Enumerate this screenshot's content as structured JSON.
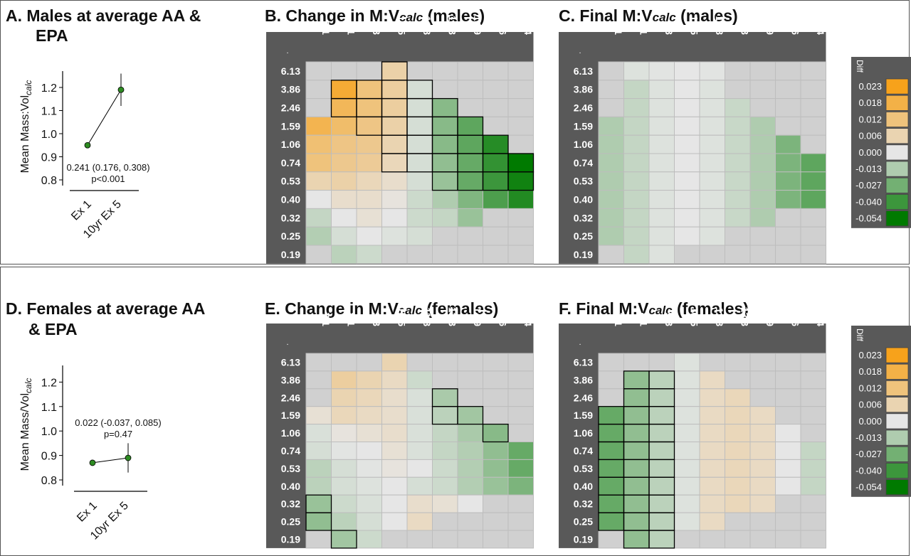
{
  "titles": {
    "A_line1": "A.  Males at average AA &",
    "A_line2": "EPA",
    "B_pre": "B. Change in M:V",
    "B_sub": "calc",
    "B_post": " (males)",
    "C_pre": "C. Final M:V",
    "C_sub": "calc",
    "C_post": " (males)",
    "D_line1": "D. Females at average AA",
    "D_line2": "& EPA",
    "E_pre": "E. Change in M:V",
    "E_sub": "calc",
    "E_post": " (females)",
    "F_pre": "F. Final M:V",
    "F_sub": "calc",
    "F_post": " (females)"
  },
  "grid_corner": ".",
  "legend_title": "Diff",
  "colors": {
    "orange": "#f7a21b",
    "green": "#007a00",
    "neutral": "#e6e6e6",
    "blank": "#d0d0d0",
    "header_bg": "#595959",
    "header_text": "#ffffff",
    "dot": "#2e8b22"
  },
  "chart_data": [
    {
      "id": "A",
      "type": "scatter",
      "ylabel_main": "Mean Mass:Vol",
      "ylabel_sub": "calc",
      "categories": [
        "Ex 1",
        "10yr Ex 5"
      ],
      "values": [
        0.95,
        1.19
      ],
      "error_bars": [
        [
          0.94,
          0.96
        ],
        [
          1.12,
          1.26
        ]
      ],
      "yticks": [
        "0.8",
        "0.9",
        "1.0",
        "1.1",
        "1.2"
      ],
      "ylim": [
        0.8,
        1.25
      ],
      "annotation_line1": "0.241 (0.176, 0.308)",
      "annotation_line2": "p<0.001"
    },
    {
      "id": "D",
      "type": "scatter",
      "ylabel_main": "Mean Mass/Vol",
      "ylabel_sub": "calc",
      "categories": [
        "Ex 1",
        "10yr Ex 5"
      ],
      "values": [
        0.87,
        0.89
      ],
      "error_bars": [
        [
          0.86,
          0.88
        ],
        [
          0.83,
          0.95
        ]
      ],
      "yticks": [
        "0.8",
        "0.9",
        "1.0",
        "1.1",
        "1.2"
      ],
      "ylim": [
        0.8,
        1.25
      ],
      "annotation_line1": "0.022 (-0.037, 0.085)",
      "annotation_line2": "p=0.47"
    },
    {
      "id": "B",
      "type": "heatmap",
      "x": [
        "7.1",
        "8.1",
        "9.3",
        "10.5",
        "11.8",
        "13.3",
        "14.9",
        "16.6",
        "18.4"
      ],
      "y": [
        "6.13",
        "3.86",
        "2.46",
        "1.59",
        "1.06",
        "0.74",
        "0.53",
        "0.40",
        "0.32",
        "0.25",
        "0.19"
      ],
      "values": [
        [
          null,
          null,
          null,
          0.007,
          null,
          null,
          null,
          null,
          null
        ],
        [
          null,
          0.02,
          0.012,
          0.008,
          -0.004,
          null,
          null,
          null,
          null
        ],
        [
          null,
          0.016,
          0.012,
          0.008,
          -0.004,
          -0.022,
          null,
          null,
          null
        ],
        [
          0.017,
          0.014,
          0.011,
          0.007,
          -0.004,
          -0.022,
          -0.032,
          null,
          null
        ],
        [
          0.013,
          0.011,
          0.01,
          0.006,
          -0.004,
          -0.022,
          -0.032,
          -0.045,
          null
        ],
        [
          0.012,
          0.01,
          0.009,
          0.005,
          -0.004,
          -0.02,
          -0.03,
          -0.042,
          -0.054
        ],
        [
          0.006,
          0.007,
          0.005,
          0.003,
          -0.004,
          -0.018,
          -0.03,
          -0.04,
          -0.05
        ],
        [
          0.0,
          0.003,
          0.003,
          0.001,
          -0.006,
          -0.013,
          -0.024,
          -0.036,
          -0.046
        ],
        [
          -0.008,
          0.0,
          0.002,
          0.0,
          -0.006,
          -0.008,
          -0.018,
          null,
          null
        ],
        [
          -0.012,
          -0.004,
          0.0,
          -0.002,
          -0.004,
          null,
          null,
          null,
          null
        ],
        [
          null,
          -0.01,
          -0.006,
          null,
          null,
          null,
          null,
          null,
          null
        ]
      ],
      "outlined": [
        [
          0,
          3
        ],
        [
          1,
          1
        ],
        [
          1,
          2
        ],
        [
          1,
          3
        ],
        [
          1,
          4
        ],
        [
          2,
          1
        ],
        [
          2,
          2
        ],
        [
          2,
          3
        ],
        [
          2,
          4
        ],
        [
          2,
          5
        ],
        [
          3,
          2
        ],
        [
          3,
          3
        ],
        [
          3,
          4
        ],
        [
          3,
          5
        ],
        [
          3,
          6
        ],
        [
          4,
          3
        ],
        [
          4,
          4
        ],
        [
          4,
          5
        ],
        [
          4,
          6
        ],
        [
          4,
          7
        ],
        [
          5,
          3
        ],
        [
          5,
          4
        ],
        [
          5,
          5
        ],
        [
          5,
          6
        ],
        [
          5,
          7
        ],
        [
          5,
          8
        ],
        [
          6,
          5
        ],
        [
          6,
          6
        ],
        [
          6,
          7
        ],
        [
          6,
          8
        ]
      ]
    },
    {
      "id": "C",
      "type": "heatmap",
      "x": [
        "7.1",
        "8.1",
        "9.3",
        "10.5",
        "11.8",
        "13.3",
        "14.9",
        "16.6",
        "18.4"
      ],
      "y": [
        "6.13",
        "3.86",
        "2.46",
        "1.59",
        "1.06",
        "0.74",
        "0.53",
        "0.40",
        "0.32",
        "0.25",
        "0.19"
      ],
      "values": [
        [
          null,
          -0.002,
          -0.001,
          0.0,
          -0.001,
          null,
          null,
          null,
          null
        ],
        [
          null,
          -0.008,
          -0.002,
          0.0,
          -0.002,
          null,
          null,
          null,
          null
        ],
        [
          null,
          -0.008,
          -0.002,
          0.0,
          -0.002,
          -0.007,
          null,
          null,
          null
        ],
        [
          -0.013,
          -0.008,
          -0.002,
          0.0,
          -0.002,
          -0.007,
          -0.013,
          null,
          null
        ],
        [
          -0.013,
          -0.008,
          -0.002,
          0.0,
          -0.002,
          -0.007,
          -0.013,
          -0.025,
          null
        ],
        [
          -0.013,
          -0.008,
          -0.002,
          0.0,
          -0.002,
          -0.007,
          -0.013,
          -0.025,
          -0.032
        ],
        [
          -0.013,
          -0.008,
          -0.002,
          0.0,
          -0.002,
          -0.007,
          -0.013,
          -0.025,
          -0.032
        ],
        [
          -0.013,
          -0.008,
          -0.002,
          0.0,
          -0.002,
          -0.007,
          -0.013,
          -0.025,
          -0.032
        ],
        [
          -0.013,
          -0.008,
          -0.002,
          0.0,
          -0.002,
          -0.007,
          -0.013,
          null,
          null
        ],
        [
          -0.013,
          -0.008,
          -0.002,
          0.0,
          -0.002,
          null,
          null,
          null,
          null
        ],
        [
          null,
          -0.008,
          -0.002,
          null,
          null,
          null,
          null,
          null,
          null
        ]
      ],
      "outlined": []
    },
    {
      "id": "E",
      "type": "heatmap",
      "x": [
        "7.1",
        "8.1",
        "9.3",
        "10.5",
        "11.8",
        "13.3",
        "14.9",
        "16.6",
        "18.4"
      ],
      "y": [
        "6.13",
        "3.86",
        "2.46",
        "1.59",
        "1.06",
        "0.74",
        "0.53",
        "0.40",
        "0.32",
        "0.25",
        "0.19"
      ],
      "values": [
        [
          null,
          null,
          null,
          0.006,
          null,
          null,
          null,
          null,
          null
        ],
        [
          null,
          0.008,
          0.006,
          0.004,
          -0.006,
          null,
          null,
          null,
          null
        ],
        [
          null,
          0.006,
          0.005,
          0.003,
          -0.003,
          -0.014,
          null,
          null,
          null
        ],
        [
          0.002,
          0.005,
          0.004,
          0.003,
          -0.003,
          -0.01,
          -0.016,
          null,
          null
        ],
        [
          -0.003,
          0.001,
          0.002,
          0.003,
          -0.003,
          -0.008,
          -0.014,
          -0.022,
          null
        ],
        [
          -0.004,
          -0.001,
          0.0,
          0.002,
          -0.003,
          -0.008,
          -0.012,
          -0.02,
          -0.03
        ],
        [
          -0.01,
          -0.004,
          -0.001,
          0.001,
          0.0,
          -0.006,
          -0.012,
          -0.02,
          -0.03
        ],
        [
          -0.01,
          -0.004,
          -0.002,
          0.0,
          -0.004,
          -0.006,
          -0.012,
          -0.018,
          -0.025
        ],
        [
          -0.018,
          -0.006,
          -0.003,
          0.0,
          0.003,
          0.002,
          0.0,
          null,
          null
        ],
        [
          -0.02,
          -0.01,
          -0.004,
          0.0,
          0.004,
          null,
          null,
          null,
          null
        ],
        [
          null,
          -0.016,
          -0.006,
          null,
          null,
          null,
          null,
          null,
          null
        ]
      ],
      "outlined": [
        [
          2,
          5
        ],
        [
          3,
          5
        ],
        [
          3,
          6
        ],
        [
          4,
          7
        ],
        [
          8,
          0
        ],
        [
          9,
          0
        ],
        [
          10,
          1
        ]
      ]
    },
    {
      "id": "F",
      "type": "heatmap",
      "x": [
        "7.1",
        "8.1",
        "9.3",
        "10.5",
        "11.8",
        "13.3",
        "14.9",
        "16.6",
        "18.4"
      ],
      "y": [
        "6.13",
        "3.86",
        "2.46",
        "1.59",
        "1.06",
        "0.74",
        "0.53",
        "0.40",
        "0.32",
        "0.25",
        "0.19"
      ],
      "values": [
        [
          null,
          null,
          null,
          -0.002,
          null,
          null,
          null,
          null,
          null
        ],
        [
          null,
          -0.02,
          -0.01,
          -0.002,
          0.004,
          null,
          null,
          null,
          null
        ],
        [
          null,
          -0.02,
          -0.01,
          -0.002,
          0.004,
          0.005,
          null,
          null,
          null
        ],
        [
          -0.03,
          -0.02,
          -0.01,
          -0.002,
          0.004,
          0.005,
          0.004,
          null,
          null
        ],
        [
          -0.03,
          -0.02,
          -0.01,
          -0.002,
          0.004,
          0.005,
          0.004,
          0.0,
          null
        ],
        [
          -0.03,
          -0.02,
          -0.01,
          -0.002,
          0.004,
          0.005,
          0.004,
          0.0,
          -0.008
        ],
        [
          -0.03,
          -0.02,
          -0.01,
          -0.002,
          0.004,
          0.005,
          0.004,
          0.0,
          -0.008
        ],
        [
          -0.03,
          -0.02,
          -0.01,
          -0.002,
          0.004,
          0.005,
          0.004,
          0.0,
          -0.008
        ],
        [
          -0.03,
          -0.02,
          -0.01,
          -0.002,
          0.004,
          0.005,
          0.004,
          null,
          null
        ],
        [
          -0.03,
          -0.02,
          -0.01,
          -0.002,
          0.004,
          null,
          null,
          null,
          null
        ],
        [
          null,
          -0.02,
          -0.01,
          null,
          null,
          null,
          null,
          null,
          null
        ]
      ],
      "outlined": [
        [
          1,
          1
        ],
        [
          1,
          2
        ],
        [
          2,
          1
        ],
        [
          2,
          2
        ],
        [
          3,
          0
        ],
        [
          3,
          1
        ],
        [
          3,
          2
        ],
        [
          4,
          0
        ],
        [
          4,
          1
        ],
        [
          4,
          2
        ],
        [
          5,
          0
        ],
        [
          5,
          1
        ],
        [
          5,
          2
        ],
        [
          6,
          0
        ],
        [
          6,
          1
        ],
        [
          6,
          2
        ],
        [
          7,
          0
        ],
        [
          7,
          1
        ],
        [
          7,
          2
        ],
        [
          8,
          0
        ],
        [
          8,
          1
        ],
        [
          8,
          2
        ],
        [
          9,
          0
        ],
        [
          9,
          1
        ],
        [
          9,
          2
        ],
        [
          10,
          1
        ],
        [
          10,
          2
        ]
      ]
    },
    {
      "id": "legend",
      "type": "table",
      "labels": [
        "0.023",
        "0.018",
        "0.012",
        "0.006",
        "0.000",
        "-0.013",
        "-0.027",
        "-0.040",
        "-0.054"
      ],
      "values": [
        0.023,
        0.018,
        0.012,
        0.006,
        0.0,
        -0.013,
        -0.027,
        -0.04,
        -0.054
      ]
    }
  ]
}
